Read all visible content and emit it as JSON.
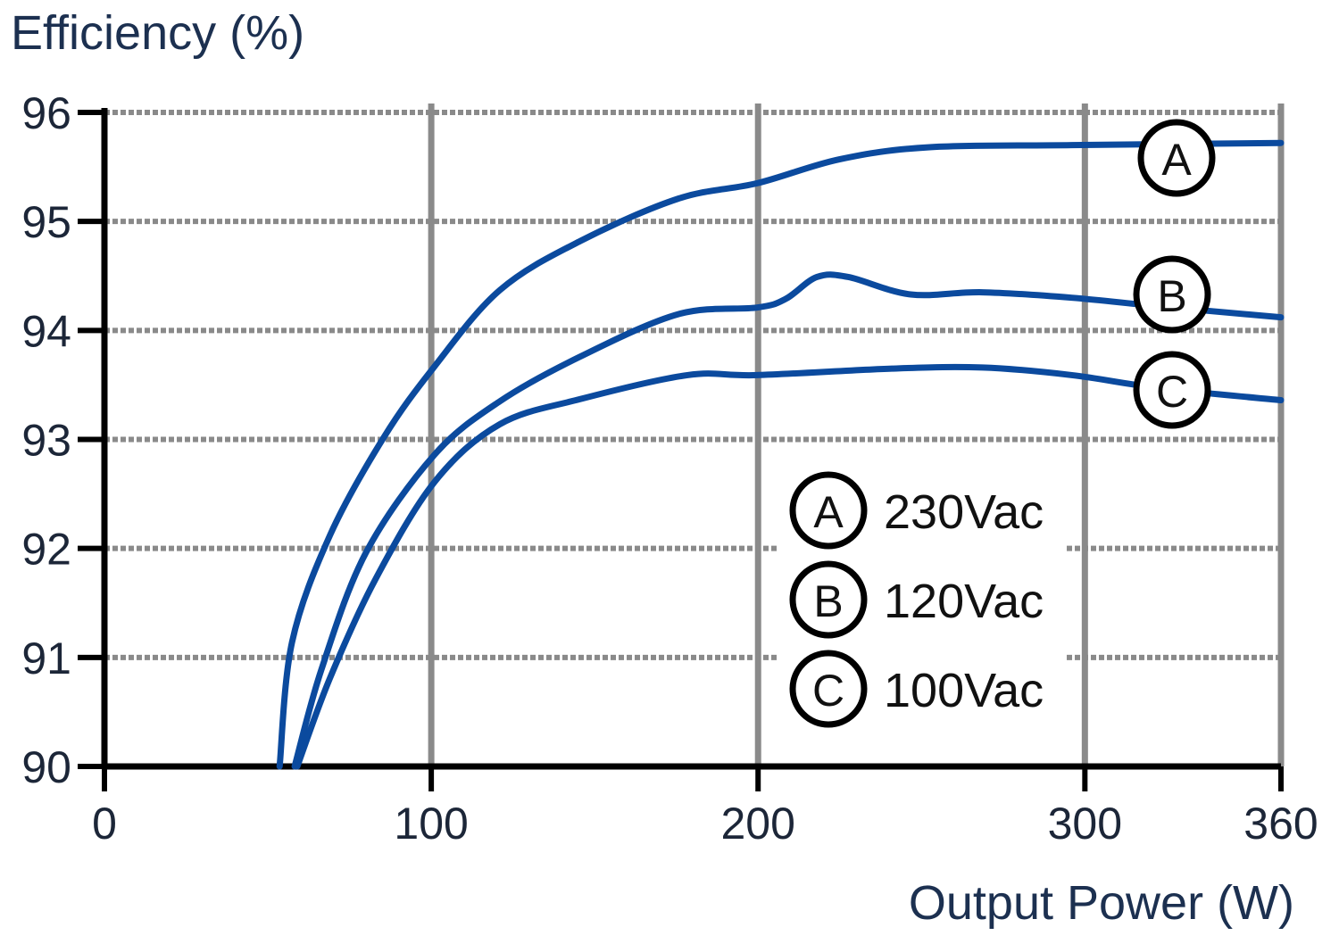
{
  "chart_data": {
    "type": "line",
    "ylabel": "Efficiency (%)",
    "xlabel": "Output Power (W)",
    "xlim": [
      0,
      360
    ],
    "ylim": [
      90,
      96
    ],
    "xticks": [
      "0",
      "100",
      "200",
      "300",
      "360"
    ],
    "yticks": [
      "90",
      "91",
      "92",
      "93",
      "94",
      "95",
      "96"
    ],
    "grid": true,
    "legend_position": "center-right",
    "line_color": "#0b4a9e",
    "series": [
      {
        "name": "230Vac",
        "marker": "A",
        "x": [
          53.6,
          57.4,
          69,
          85.5,
          101,
          121,
          145.6,
          175.7,
          199.7,
          224.9,
          252,
          296,
          360
        ],
        "y": [
          90,
          91.14,
          92.12,
          93.02,
          93.67,
          94.37,
          94.82,
          95.21,
          95.35,
          95.57,
          95.68,
          95.7,
          95.72
        ]
      },
      {
        "name": "120Vac",
        "marker": "B",
        "x": [
          58.2,
          66.4,
          80,
          101,
          121,
          145.6,
          175.7,
          199.7,
          208.5,
          218,
          227.6,
          246.7,
          268.6,
          296,
          323,
          360
        ],
        "y": [
          90,
          90.89,
          91.96,
          92.86,
          93.35,
          93.76,
          94.15,
          94.21,
          94.29,
          94.49,
          94.49,
          94.33,
          94.35,
          94.3,
          94.22,
          94.12
        ]
      },
      {
        "name": "100Vac",
        "marker": "C",
        "x": [
          59,
          69,
          82.8,
          101,
          121,
          145.6,
          178.4,
          199.7,
          241,
          268.6,
          296,
          323,
          360
        ],
        "y": [
          90,
          90.81,
          91.71,
          92.61,
          93.14,
          93.37,
          93.59,
          93.59,
          93.65,
          93.66,
          93.59,
          93.47,
          93.36
        ]
      }
    ]
  }
}
